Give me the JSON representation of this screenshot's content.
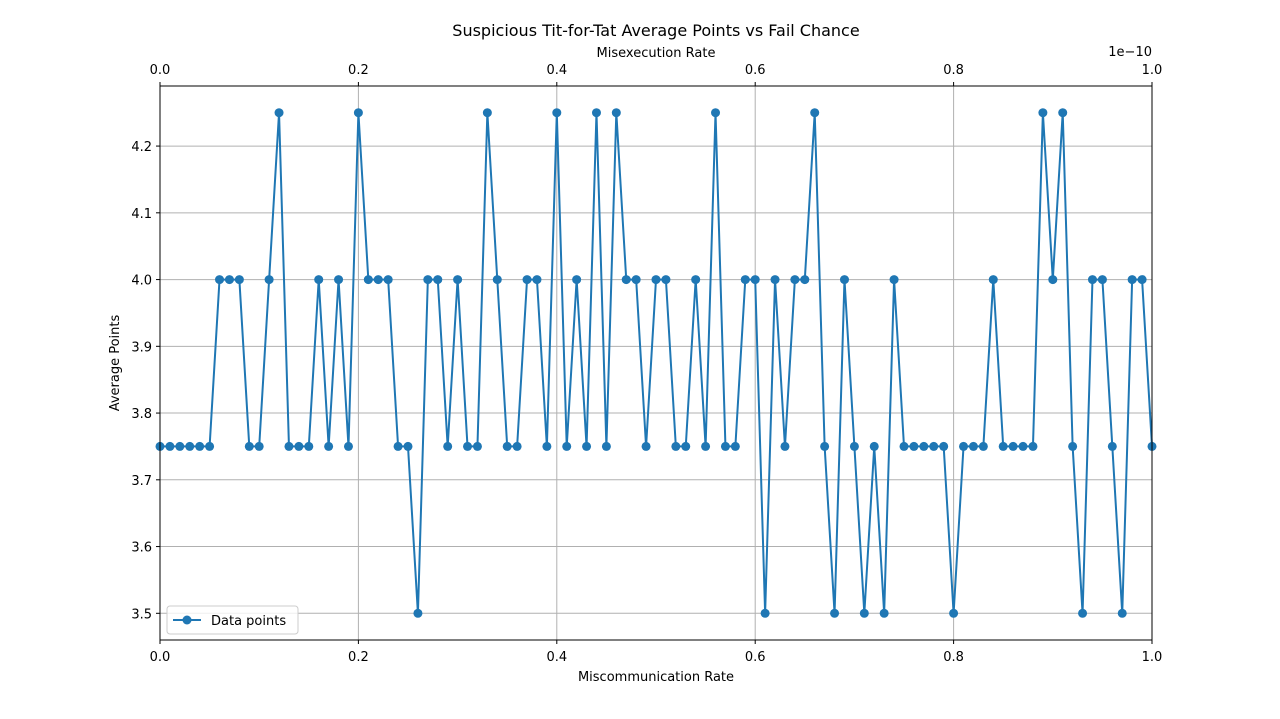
{
  "chart_data": {
    "type": "line",
    "title": "Suspicious Tit-for-Tat Average Points vs Fail Chance",
    "xlabel": "Miscommunication Rate",
    "ylabel": "Average Points",
    "x2label": "Misexecution Rate",
    "x2_offset_text": "1e−10",
    "xlim": [
      0,
      1
    ],
    "ylim": [
      3.46,
      4.29
    ],
    "x_ticks": [
      "0.0",
      "0.2",
      "0.4",
      "0.6",
      "0.8",
      "1.0"
    ],
    "x2_ticks": [
      "0.0",
      "0.2",
      "0.4",
      "0.6",
      "0.8",
      "1.0"
    ],
    "y_ticks": [
      "3.5",
      "3.6",
      "3.7",
      "3.8",
      "3.9",
      "4.0",
      "4.1",
      "4.2"
    ],
    "grid": true,
    "legend_position": "lower-left",
    "series": [
      {
        "name": "Data points",
        "color": "#1f77b4",
        "marker": "circle",
        "x": [
          0.0,
          0.01,
          0.02,
          0.03,
          0.04,
          0.05,
          0.06,
          0.07,
          0.08,
          0.09,
          0.1,
          0.11,
          0.12,
          0.13,
          0.14,
          0.15,
          0.16,
          0.17,
          0.18,
          0.19,
          0.2,
          0.21,
          0.22,
          0.23,
          0.24,
          0.25,
          0.26,
          0.27,
          0.28,
          0.29,
          0.3,
          0.31,
          0.32,
          0.33,
          0.34,
          0.35,
          0.36,
          0.37,
          0.38,
          0.39,
          0.4,
          0.41,
          0.42,
          0.43,
          0.44,
          0.45,
          0.46,
          0.47,
          0.48,
          0.49,
          0.5,
          0.51,
          0.52,
          0.53,
          0.54,
          0.55,
          0.56,
          0.57,
          0.58,
          0.59,
          0.6,
          0.61,
          0.62,
          0.63,
          0.64,
          0.65,
          0.66,
          0.67,
          0.68,
          0.69,
          0.7,
          0.71,
          0.72,
          0.73,
          0.74,
          0.75,
          0.76,
          0.77,
          0.78,
          0.79,
          0.8,
          0.81,
          0.82,
          0.83,
          0.84,
          0.85,
          0.86,
          0.87,
          0.88,
          0.89,
          0.9,
          0.91,
          0.92,
          0.93,
          0.94,
          0.95,
          0.96,
          0.97,
          0.98,
          0.99,
          1.0
        ],
        "y": [
          3.75,
          3.75,
          3.75,
          3.75,
          3.75,
          3.75,
          4.0,
          4.0,
          4.0,
          3.75,
          3.75,
          4.0,
          4.25,
          3.75,
          3.75,
          3.75,
          4.0,
          3.75,
          4.0,
          3.75,
          4.25,
          4.0,
          4.0,
          4.0,
          3.75,
          3.75,
          3.5,
          4.0,
          4.0,
          3.75,
          4.0,
          3.75,
          3.75,
          4.25,
          4.0,
          3.75,
          3.75,
          4.0,
          4.0,
          3.75,
          4.25,
          3.75,
          4.0,
          3.75,
          4.25,
          3.75,
          4.25,
          4.0,
          4.0,
          3.75,
          4.0,
          4.0,
          3.75,
          3.75,
          4.0,
          3.75,
          4.25,
          3.75,
          3.75,
          4.0,
          4.0,
          3.5,
          4.0,
          3.75,
          4.0,
          4.0,
          4.25,
          3.75,
          3.5,
          4.0,
          3.75,
          3.5,
          3.75,
          3.5,
          4.0,
          3.75,
          3.75,
          3.75,
          3.75,
          3.75,
          3.5,
          3.75,
          3.75,
          3.75,
          4.0,
          3.75,
          3.75,
          3.75,
          3.75,
          4.25,
          4.0,
          4.25,
          3.75,
          3.5,
          4.0,
          4.0,
          3.75,
          3.5,
          4.0,
          4.0,
          3.75
        ]
      }
    ]
  }
}
